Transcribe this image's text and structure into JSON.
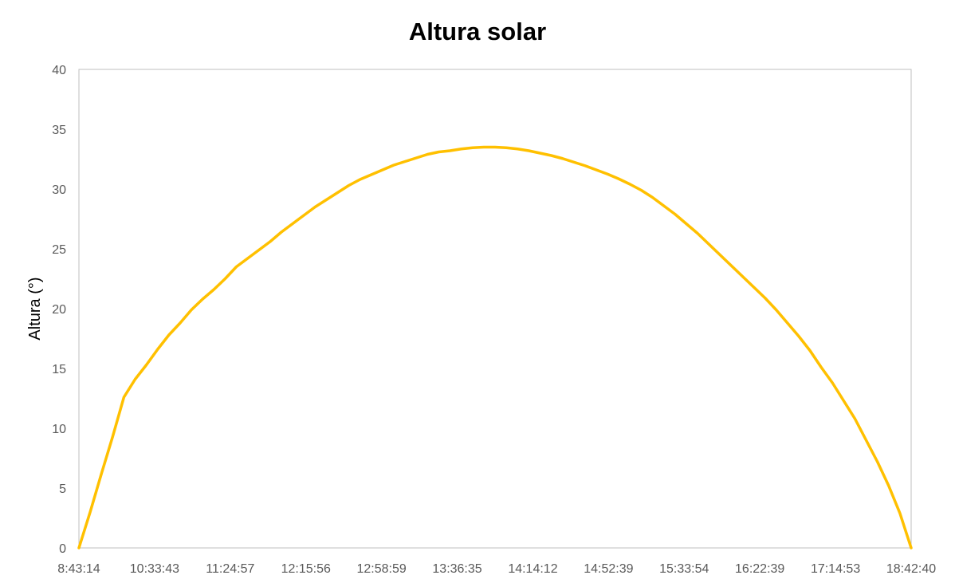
{
  "chart_data": {
    "type": "line",
    "title": "Altura solar",
    "xlabel": "",
    "ylabel": "Altura (°)",
    "ylim": [
      0,
      40
    ],
    "yticks": [
      0,
      5,
      10,
      15,
      20,
      25,
      30,
      35,
      40
    ],
    "xticks": [
      "8:43:14",
      "10:33:43",
      "11:24:57",
      "12:15:56",
      "12:58:59",
      "13:36:35",
      "14:14:12",
      "14:52:39",
      "15:33:54",
      "16:22:39",
      "17:14:53",
      "18:42:40"
    ],
    "grid": false,
    "legend": "none",
    "colors": {
      "line": "#FFC000",
      "frame": "#BFBFBF",
      "tick_text": "#595959",
      "text": "#000000"
    },
    "series": [
      {
        "name": "Altura solar",
        "values": [
          0,
          3,
          6.2,
          9.3,
          12.6,
          14.1,
          15.3,
          16.6,
          17.8,
          18.8,
          19.9,
          20.8,
          21.6,
          22.5,
          23.5,
          24.2,
          24.9,
          25.6,
          26.4,
          27.1,
          27.8,
          28.5,
          29.1,
          29.7,
          30.3,
          30.8,
          31.2,
          31.6,
          32.0,
          32.3,
          32.6,
          32.9,
          33.1,
          33.2,
          33.35,
          33.45,
          33.5,
          33.5,
          33.45,
          33.35,
          33.2,
          33.0,
          32.8,
          32.55,
          32.25,
          31.95,
          31.6,
          31.25,
          30.85,
          30.4,
          29.9,
          29.3,
          28.6,
          27.9,
          27.1,
          26.3,
          25.4,
          24.5,
          23.6,
          22.7,
          21.8,
          20.9,
          19.9,
          18.8,
          17.7,
          16.5,
          15.1,
          13.8,
          12.3,
          10.8,
          9.0,
          7.2,
          5.2,
          2.9,
          0
        ]
      }
    ]
  }
}
